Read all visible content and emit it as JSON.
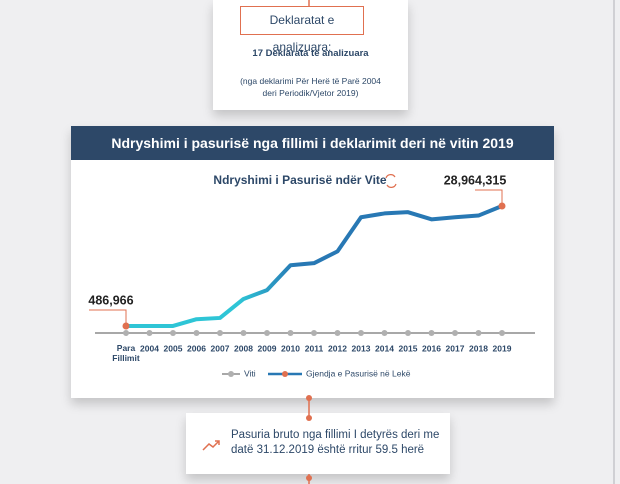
{
  "top_box": {
    "heading": "Deklaratat e analizuara:",
    "count": "17 Deklarata të analizuara",
    "note": "(nga deklarimi Për Herë të Parë 2004 deri Periodik/Vjetor 2019)"
  },
  "chart_data": {
    "type": "line",
    "title": "Ndryshimi i pasurisë nga fillimi i deklarimit deri në vitin 2019",
    "subtitle": "Ndryshimi i Pasurisë ndër Vite",
    "axis_legend": "Viti",
    "categories": [
      "Para Fillimit",
      "2004",
      "2005",
      "2006",
      "2007",
      "2008",
      "2009",
      "2010",
      "2011",
      "2012",
      "2013",
      "2014",
      "2015",
      "2016",
      "2017",
      "2018",
      "2019"
    ],
    "series": [
      {
        "name": "Gjendja e Pasurisë në Lekë",
        "color": "#2878b4",
        "color_start": "#2ec5d6",
        "marker_color": "#e07050",
        "values": [
          486966,
          500000,
          500000,
          2100000,
          2400000,
          6900000,
          9000000,
          14900000,
          15400000,
          18200000,
          26300000,
          27200000,
          27500000,
          25800000,
          26300000,
          26700000,
          28964315
        ],
        "value_labels": [
          "486,966",
          null,
          null,
          null,
          null,
          null,
          null,
          null,
          null,
          null,
          null,
          null,
          null,
          null,
          null,
          null,
          "28,964,315"
        ]
      }
    ]
  },
  "summary": "Pasuria bruto nga fillimi I detyrës deri me datë 31.12.2019 është rritur 59.5 herë"
}
